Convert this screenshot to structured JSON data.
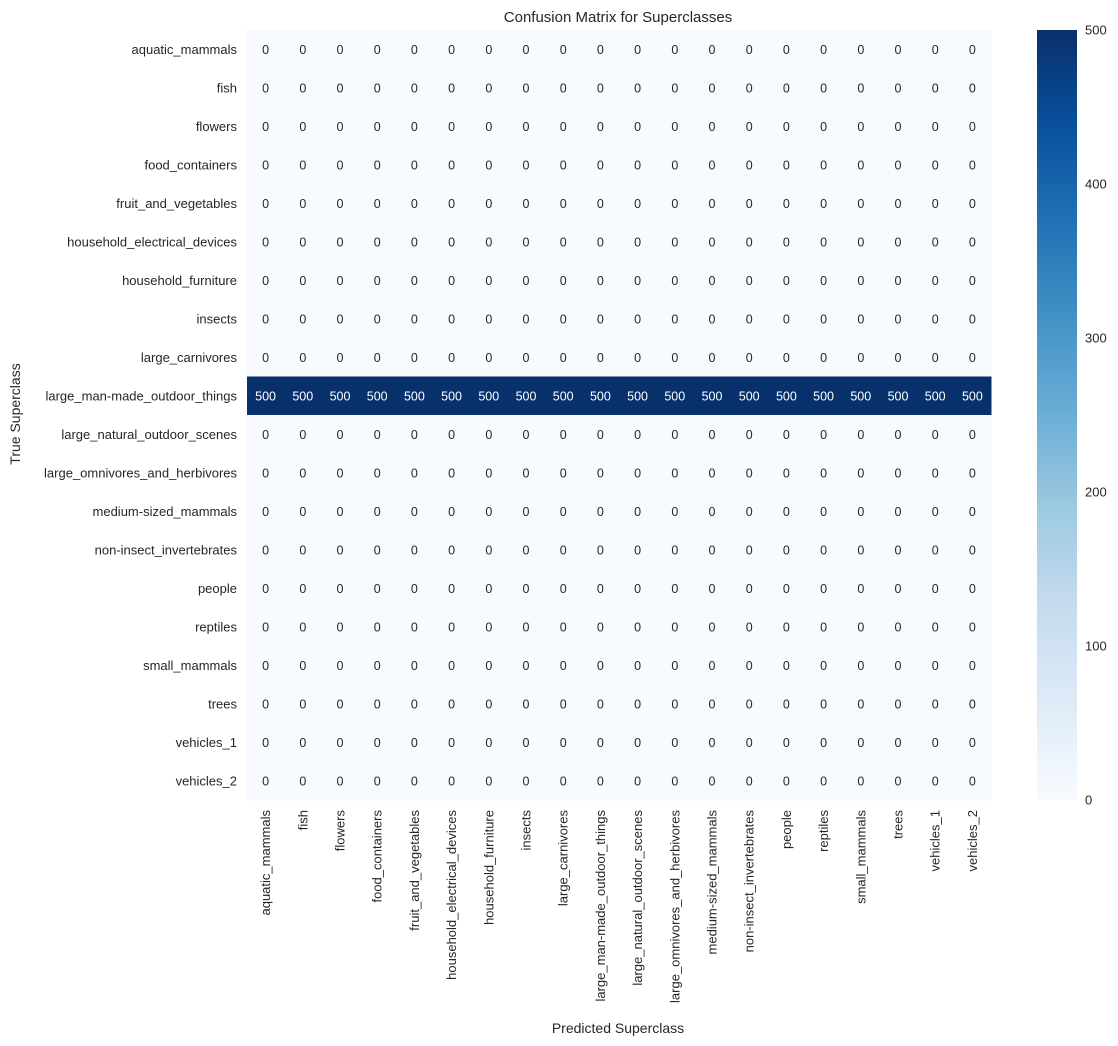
{
  "chart_data": {
    "type": "heatmap",
    "title": "Confusion Matrix for Superclasses",
    "xlabel": "Predicted Superclass",
    "ylabel": "True Superclass",
    "row_labels": [
      "aquatic_mammals",
      "fish",
      "flowers",
      "food_containers",
      "fruit_and_vegetables",
      "household_electrical_devices",
      "household_furniture",
      "insects",
      "large_carnivores",
      "large_man-made_outdoor_things",
      "large_natural_outdoor_scenes",
      "large_omnivores_and_herbivores",
      "medium-sized_mammals",
      "non-insect_invertebrates",
      "people",
      "reptiles",
      "small_mammals",
      "trees",
      "vehicles_1",
      "vehicles_2"
    ],
    "col_labels": [
      "aquatic_mammals",
      "fish",
      "flowers",
      "food_containers",
      "fruit_and_vegetables",
      "household_electrical_devices",
      "household_furniture",
      "insects",
      "large_carnivores",
      "large_man-made_outdoor_things",
      "large_natural_outdoor_scenes",
      "large_omnivores_and_herbivores",
      "medium-sized_mammals",
      "non-insect_invertebrates",
      "people",
      "reptiles",
      "small_mammals",
      "trees",
      "vehicles_1",
      "vehicles_2"
    ],
    "values": [
      [
        0,
        0,
        0,
        0,
        0,
        0,
        0,
        0,
        0,
        0,
        0,
        0,
        0,
        0,
        0,
        0,
        0,
        0,
        0,
        0
      ],
      [
        0,
        0,
        0,
        0,
        0,
        0,
        0,
        0,
        0,
        0,
        0,
        0,
        0,
        0,
        0,
        0,
        0,
        0,
        0,
        0
      ],
      [
        0,
        0,
        0,
        0,
        0,
        0,
        0,
        0,
        0,
        0,
        0,
        0,
        0,
        0,
        0,
        0,
        0,
        0,
        0,
        0
      ],
      [
        0,
        0,
        0,
        0,
        0,
        0,
        0,
        0,
        0,
        0,
        0,
        0,
        0,
        0,
        0,
        0,
        0,
        0,
        0,
        0
      ],
      [
        0,
        0,
        0,
        0,
        0,
        0,
        0,
        0,
        0,
        0,
        0,
        0,
        0,
        0,
        0,
        0,
        0,
        0,
        0,
        0
      ],
      [
        0,
        0,
        0,
        0,
        0,
        0,
        0,
        0,
        0,
        0,
        0,
        0,
        0,
        0,
        0,
        0,
        0,
        0,
        0,
        0
      ],
      [
        0,
        0,
        0,
        0,
        0,
        0,
        0,
        0,
        0,
        0,
        0,
        0,
        0,
        0,
        0,
        0,
        0,
        0,
        0,
        0
      ],
      [
        0,
        0,
        0,
        0,
        0,
        0,
        0,
        0,
        0,
        0,
        0,
        0,
        0,
        0,
        0,
        0,
        0,
        0,
        0,
        0
      ],
      [
        0,
        0,
        0,
        0,
        0,
        0,
        0,
        0,
        0,
        0,
        0,
        0,
        0,
        0,
        0,
        0,
        0,
        0,
        0,
        0
      ],
      [
        500,
        500,
        500,
        500,
        500,
        500,
        500,
        500,
        500,
        500,
        500,
        500,
        500,
        500,
        500,
        500,
        500,
        500,
        500,
        500
      ],
      [
        0,
        0,
        0,
        0,
        0,
        0,
        0,
        0,
        0,
        0,
        0,
        0,
        0,
        0,
        0,
        0,
        0,
        0,
        0,
        0
      ],
      [
        0,
        0,
        0,
        0,
        0,
        0,
        0,
        0,
        0,
        0,
        0,
        0,
        0,
        0,
        0,
        0,
        0,
        0,
        0,
        0
      ],
      [
        0,
        0,
        0,
        0,
        0,
        0,
        0,
        0,
        0,
        0,
        0,
        0,
        0,
        0,
        0,
        0,
        0,
        0,
        0,
        0
      ],
      [
        0,
        0,
        0,
        0,
        0,
        0,
        0,
        0,
        0,
        0,
        0,
        0,
        0,
        0,
        0,
        0,
        0,
        0,
        0,
        0
      ],
      [
        0,
        0,
        0,
        0,
        0,
        0,
        0,
        0,
        0,
        0,
        0,
        0,
        0,
        0,
        0,
        0,
        0,
        0,
        0,
        0
      ],
      [
        0,
        0,
        0,
        0,
        0,
        0,
        0,
        0,
        0,
        0,
        0,
        0,
        0,
        0,
        0,
        0,
        0,
        0,
        0,
        0
      ],
      [
        0,
        0,
        0,
        0,
        0,
        0,
        0,
        0,
        0,
        0,
        0,
        0,
        0,
        0,
        0,
        0,
        0,
        0,
        0,
        0
      ],
      [
        0,
        0,
        0,
        0,
        0,
        0,
        0,
        0,
        0,
        0,
        0,
        0,
        0,
        0,
        0,
        0,
        0,
        0,
        0,
        0
      ],
      [
        0,
        0,
        0,
        0,
        0,
        0,
        0,
        0,
        0,
        0,
        0,
        0,
        0,
        0,
        0,
        0,
        0,
        0,
        0,
        0
      ],
      [
        0,
        0,
        0,
        0,
        0,
        0,
        0,
        0,
        0,
        0,
        0,
        0,
        0,
        0,
        0,
        0,
        0,
        0,
        0,
        0
      ]
    ],
    "colorbar": {
      "min": 0,
      "max": 500,
      "ticks": [
        "0",
        "100",
        "200",
        "300",
        "400",
        "500"
      ]
    },
    "colormap": "Blues",
    "colors": {
      "low": "#f7fbff",
      "high": "#08306b",
      "text_on_light": "#262626",
      "text_on_dark": "#ffffff"
    },
    "grid": false,
    "legend": "colorbar-right"
  }
}
